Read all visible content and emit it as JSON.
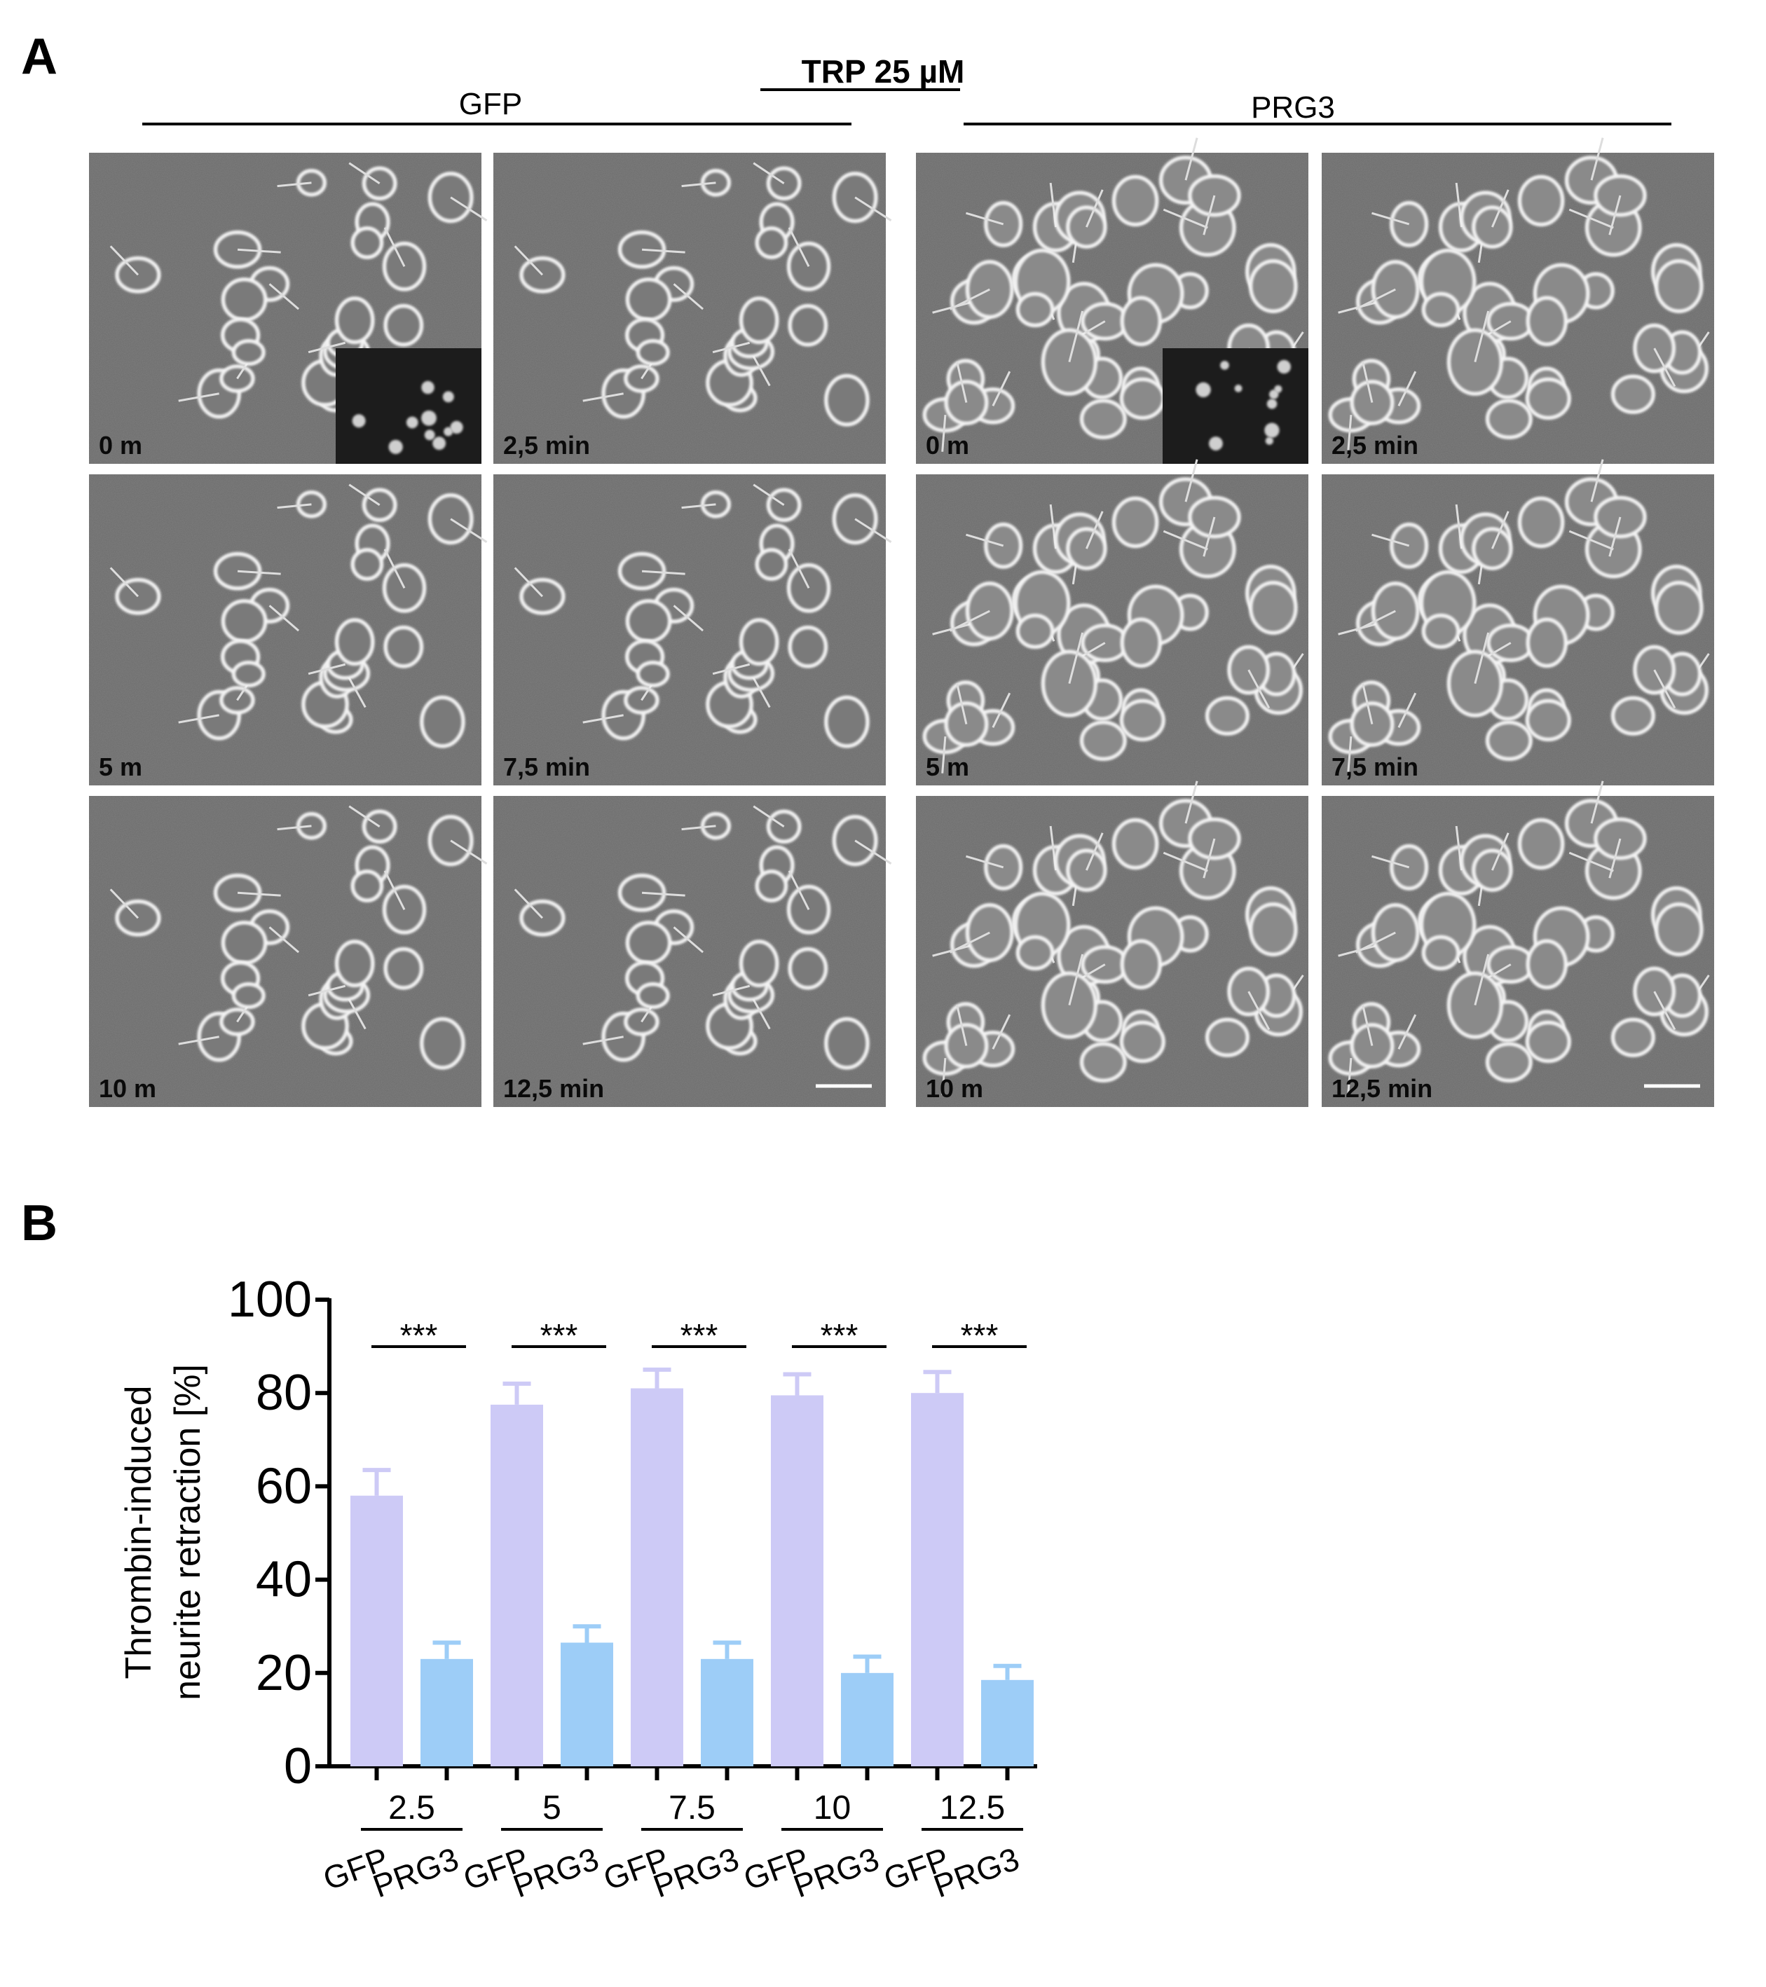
{
  "figure": {
    "panel_a_letter": "A",
    "panel_b_letter": "B",
    "treatment_title": "TRP 25 µM",
    "groups": [
      {
        "label": "GFP"
      },
      {
        "label": "PRG3"
      }
    ],
    "micrographs": [
      {
        "group": "GFP",
        "time_label": "0 m",
        "has_inset": true,
        "scale_bar": false
      },
      {
        "group": "GFP",
        "time_label": "2,5 min",
        "has_inset": false,
        "scale_bar": false
      },
      {
        "group": "PRG3",
        "time_label": "0 m",
        "has_inset": true,
        "scale_bar": false
      },
      {
        "group": "PRG3",
        "time_label": "2,5 min",
        "has_inset": false,
        "scale_bar": false
      },
      {
        "group": "GFP",
        "time_label": "5 m",
        "has_inset": false,
        "scale_bar": false
      },
      {
        "group": "GFP",
        "time_label": "7,5 min",
        "has_inset": false,
        "scale_bar": false
      },
      {
        "group": "PRG3",
        "time_label": "5 m",
        "has_inset": false,
        "scale_bar": false
      },
      {
        "group": "PRG3",
        "time_label": "7,5 min",
        "has_inset": false,
        "scale_bar": false
      },
      {
        "group": "GFP",
        "time_label": "10 m",
        "has_inset": false,
        "scale_bar": false
      },
      {
        "group": "GFP",
        "time_label": "12,5 min",
        "has_inset": false,
        "scale_bar": true
      },
      {
        "group": "PRG3",
        "time_label": "10 m",
        "has_inset": false,
        "scale_bar": false
      },
      {
        "group": "PRG3",
        "time_label": "12,5 min",
        "has_inset": false,
        "scale_bar": true
      }
    ]
  },
  "chart_data": {
    "type": "bar",
    "title": "",
    "ylabel_line1": "Thrombin-induced",
    "ylabel_line2": "neurite retraction [%]",
    "xlabel": "",
    "ylim": [
      0,
      100
    ],
    "yticks": [
      0,
      20,
      40,
      60,
      80,
      100
    ],
    "categories": [
      "2.5",
      "5",
      "7.5",
      "10",
      "12.5"
    ],
    "series": [
      {
        "name": "GFP",
        "color": "#cdcaf6",
        "values": [
          58,
          77.5,
          81,
          79.5,
          80
        ],
        "errors": [
          5.5,
          4.5,
          4,
          4.5,
          4.5
        ]
      },
      {
        "name": "PRG3",
        "color": "#9dcdf7",
        "values": [
          23,
          26.5,
          23,
          20,
          18.5
        ],
        "errors": [
          3.5,
          3.5,
          3.5,
          3.5,
          3
        ]
      }
    ],
    "significance": [
      "***",
      "***",
      "***",
      "***",
      "***"
    ]
  },
  "colors": {
    "micrograph_bg": "#6b6b6b",
    "inset_bg": "#1c1c1c",
    "axis": "#000000"
  }
}
